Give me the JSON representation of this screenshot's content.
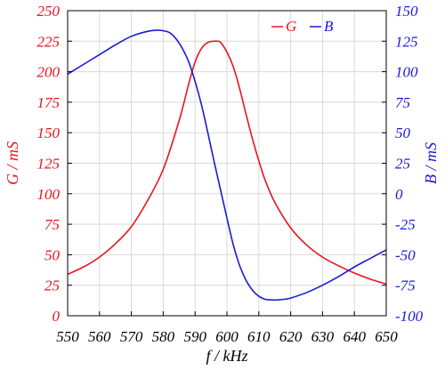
{
  "chart_data": {
    "type": "line",
    "xlabel": "f / kHz",
    "ylabel_left": "G / mS",
    "ylabel_right": "B / mS",
    "xlim": [
      550,
      650
    ],
    "ylim_left": [
      0,
      250
    ],
    "ylim_right": [
      -100,
      150
    ],
    "x_ticks": [
      550,
      560,
      570,
      580,
      590,
      600,
      610,
      620,
      630,
      640,
      650
    ],
    "y_ticks_left": [
      0,
      25,
      50,
      75,
      100,
      125,
      150,
      175,
      200,
      225,
      250
    ],
    "y_ticks_right": [
      -100,
      -75,
      -50,
      -25,
      0,
      25,
      50,
      75,
      100,
      125,
      150
    ],
    "grid": true,
    "legend_position": "top-right",
    "colors": {
      "left_axis": "#e8141e",
      "right_axis": "#1a1ad6",
      "grid": "#d9d9d9"
    },
    "series": [
      {
        "name": "G",
        "axis": "left",
        "color": "#e8141e",
        "x": [
          550,
          555,
          560,
          565,
          570,
          575,
          580,
          585,
          588,
          590,
          592,
          594,
          596,
          597,
          598,
          600,
          602,
          604,
          606,
          608,
          610,
          612,
          615,
          620,
          625,
          630,
          635,
          640,
          645,
          650
        ],
        "y": [
          34,
          40,
          48,
          59,
          73,
          94,
          120,
          160,
          190,
          208,
          219,
          224,
          225,
          225,
          224,
          216,
          204,
          186,
          165,
          145,
          127,
          111,
          93,
          72,
          58,
          48,
          41,
          35,
          30,
          26
        ]
      },
      {
        "name": "B",
        "axis": "right",
        "color": "#1a1ad6",
        "x": [
          550,
          555,
          560,
          565,
          570,
          575,
          578,
          580,
          582,
          584,
          586,
          588,
          590,
          592,
          594,
          596,
          598,
          600,
          602,
          604,
          606,
          608,
          610,
          612,
          614,
          616,
          618,
          620,
          625,
          630,
          635,
          640,
          645,
          650
        ],
        "y": [
          98,
          106,
          114,
          122,
          129,
          133,
          134,
          133.5,
          132,
          127,
          119,
          108,
          92,
          73,
          50,
          26,
          3,
          -20,
          -42,
          -59,
          -71,
          -79,
          -84,
          -86.5,
          -87,
          -87,
          -86.5,
          -85.5,
          -81,
          -75,
          -68,
          -60,
          -53,
          -46
        ]
      }
    ]
  }
}
